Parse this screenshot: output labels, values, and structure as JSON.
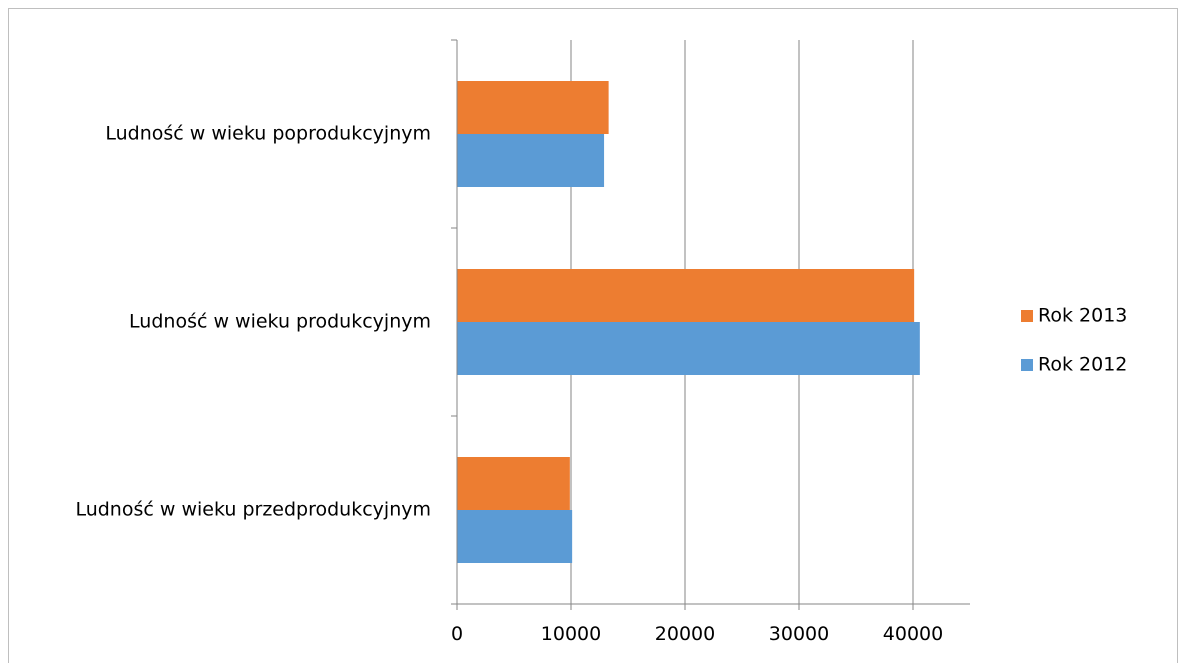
{
  "chart_data": {
    "type": "bar",
    "orientation": "horizontal",
    "categories": [
      "Ludność w wieku przedprodukcyjnym",
      "Ludność w wieku produkcyjnym",
      "Ludność w wieku poprodukcyjnym"
    ],
    "series": [
      {
        "name": "Rok 2012",
        "color": "#5b9bd5",
        "values": [
          10100,
          40600,
          12900
        ]
      },
      {
        "name": "Rok 2013",
        "color": "#ed7d31",
        "values": [
          9900,
          40100,
          13300
        ]
      }
    ],
    "xlim": [
      0,
      45000
    ],
    "xticks": [
      0,
      10000,
      20000,
      30000,
      40000
    ],
    "tick_labels": [
      "0",
      "10000",
      "20000",
      "30000",
      "40000"
    ],
    "grid": true,
    "legend": {
      "placement": "right",
      "entries": [
        "Rok 2013",
        "Rok 2012"
      ]
    },
    "title": "",
    "xlabel": "",
    "ylabel": ""
  }
}
